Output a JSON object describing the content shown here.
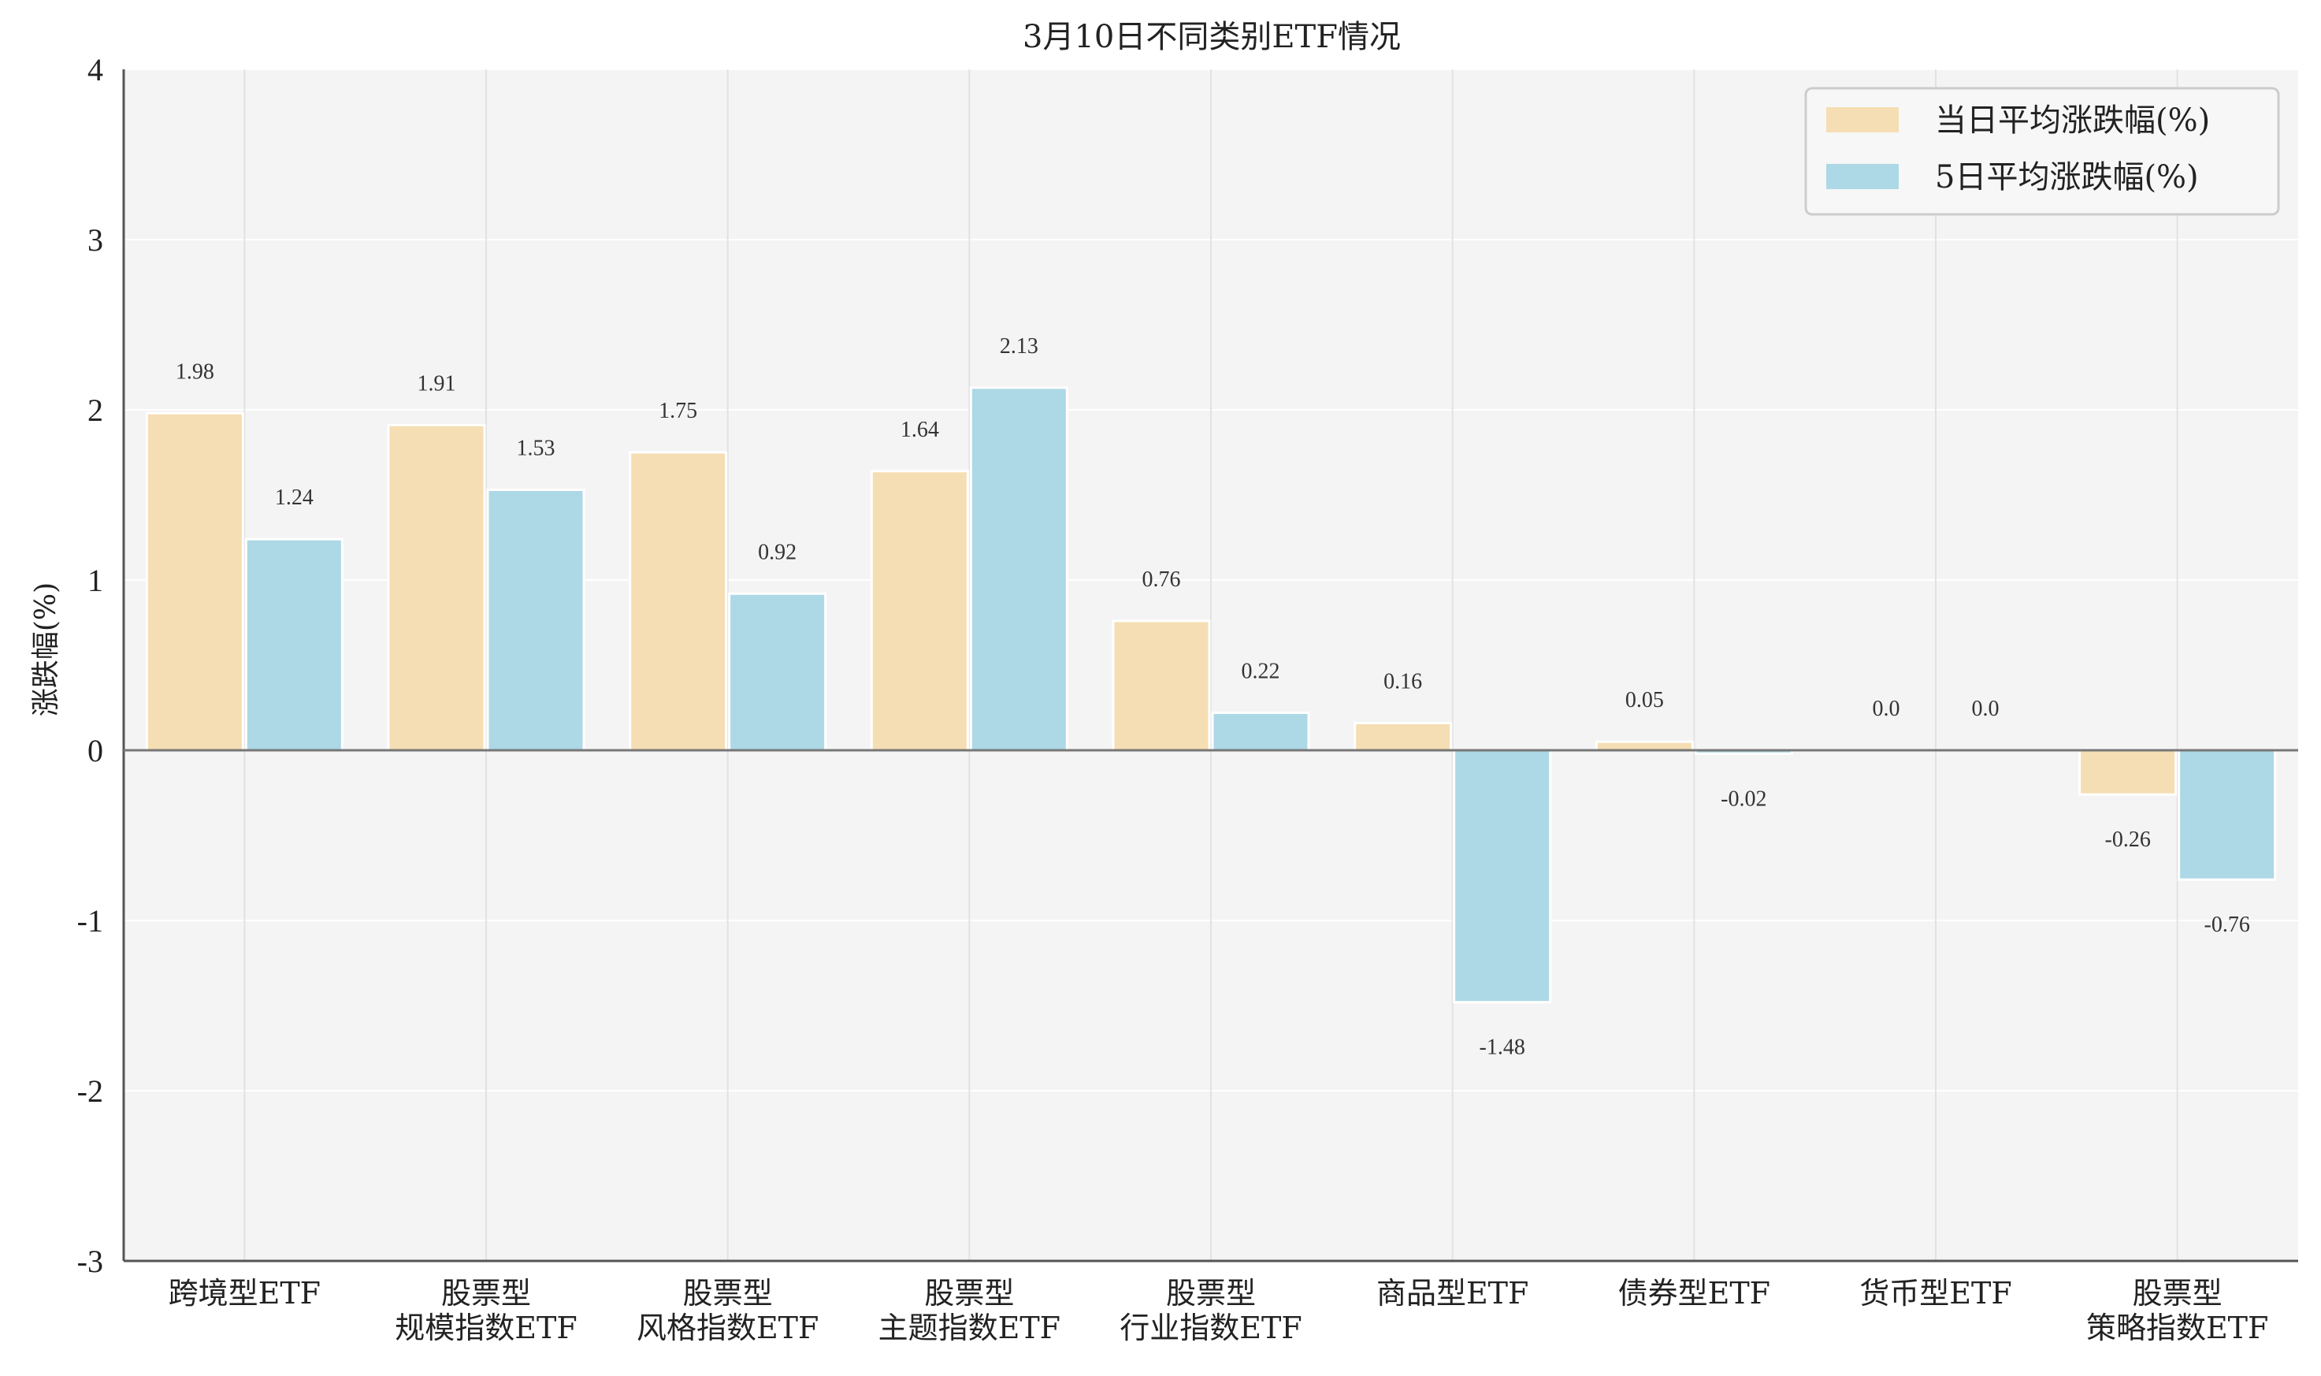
{
  "chart_data": {
    "type": "bar",
    "title": "3月10日不同类别ETF情况",
    "ylabel": "涨跌幅(%)",
    "xlabel": "",
    "ylim": [
      -3,
      4
    ],
    "yticks": [
      -3,
      -2,
      -1,
      0,
      1,
      2,
      3,
      4
    ],
    "grid": true,
    "legend_position": "top-right",
    "categories": [
      [
        "跨境型ETF"
      ],
      [
        "股票型",
        "规模指数ETF"
      ],
      [
        "股票型",
        "风格指数ETF"
      ],
      [
        "股票型",
        "主题指数ETF"
      ],
      [
        "股票型",
        "行业指数ETF"
      ],
      [
        "商品型ETF"
      ],
      [
        "债券型ETF"
      ],
      [
        "货币型ETF"
      ],
      [
        "股票型",
        "策略指数ETF"
      ]
    ],
    "series": [
      {
        "name": "当日平均涨跌幅(%)",
        "color": "#f5deb3",
        "values": [
          1.98,
          1.91,
          1.75,
          1.64,
          0.76,
          0.16,
          0.05,
          0.0,
          -0.26
        ],
        "labels": [
          "1.98",
          "1.91",
          "1.75",
          "1.64",
          "0.76",
          "0.16",
          "0.05",
          "0.0",
          "-0.26"
        ]
      },
      {
        "name": "5日平均涨跌幅(%)",
        "color": "#add8e6",
        "values": [
          1.24,
          1.53,
          0.92,
          2.13,
          0.22,
          -1.48,
          -0.02,
          0.0,
          -0.76
        ],
        "labels": [
          "1.24",
          "",
          "0.92",
          "2.13",
          "0.22",
          "-1.48",
          "-0.02",
          "0.0",
          "-0.76"
        ]
      }
    ],
    "extra_labels": [
      "1.53"
    ]
  }
}
